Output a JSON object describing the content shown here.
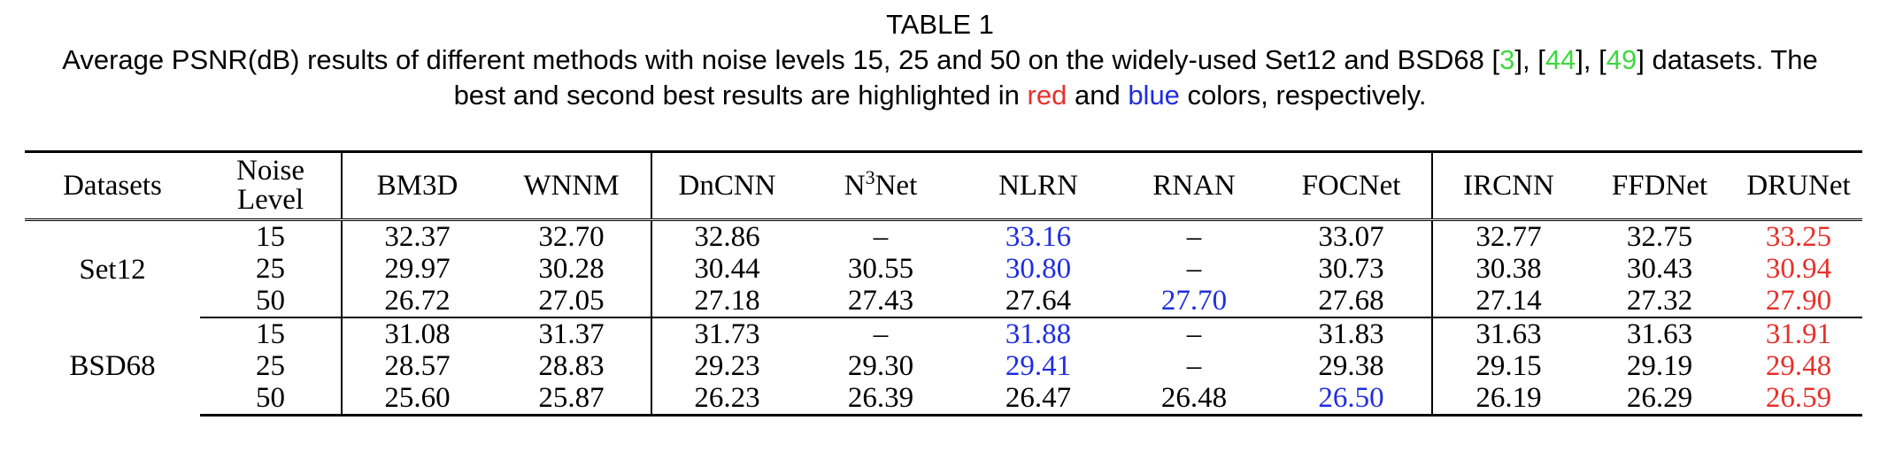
{
  "caption": {
    "label": "TABLE 1",
    "line1_pre": "Average PSNR(dB) results of different methods with noise levels 15, 25 and 50 on the widely-used Set12 and BSD68 [",
    "ref1": "3",
    "sep1": "], [",
    "ref2": "44",
    "sep2": "], [",
    "ref3": "49",
    "line1_post": "] datasets. The",
    "line2_pre": "best and second best results are highlighted in ",
    "red_word": "red",
    "and_word": " and ",
    "blue_word": "blue",
    "line2_post": " colors, respectively."
  },
  "table": {
    "headers": {
      "datasets": "Datasets",
      "noise_line1": "Noise",
      "noise_line2": "Level",
      "bm3d": "BM3D",
      "wnnm": "WNNM",
      "dncnn": "DnCNN",
      "n3net_n": "N",
      "n3net_sup": "3",
      "n3net_rest": "Net",
      "nlrn": "NLRN",
      "rnan": "RNAN",
      "focnet": "FOCNet",
      "ircnn": "IRCNN",
      "ffdnet": "FFDNet",
      "drunet": "DRUNet"
    },
    "set12": {
      "name": "Set12",
      "rows": [
        [
          "15",
          "32.37",
          "32.70",
          "32.86",
          "–",
          "33.16",
          "–",
          "33.07",
          "32.77",
          "32.75",
          "33.25"
        ],
        [
          "25",
          "29.97",
          "30.28",
          "30.44",
          "30.55",
          "30.80",
          "–",
          "30.73",
          "30.38",
          "30.43",
          "30.94"
        ],
        [
          "50",
          "26.72",
          "27.05",
          "27.18",
          "27.43",
          "27.64",
          "27.70",
          "27.68",
          "27.14",
          "27.32",
          "27.90"
        ]
      ]
    },
    "bsd68": {
      "name": "BSD68",
      "rows": [
        [
          "15",
          "31.08",
          "31.37",
          "31.73",
          "–",
          "31.88",
          "–",
          "31.83",
          "31.63",
          "31.63",
          "31.91"
        ],
        [
          "25",
          "28.57",
          "28.83",
          "29.23",
          "29.30",
          "29.41",
          "–",
          "29.38",
          "29.15",
          "29.19",
          "29.48"
        ],
        [
          "50",
          "25.60",
          "25.87",
          "26.23",
          "26.39",
          "26.47",
          "26.48",
          "26.50",
          "26.19",
          "26.29",
          "26.59"
        ]
      ]
    }
  },
  "colors": {
    "best": "#e8302b",
    "second": "#1f2ee0",
    "citation": "#3fd83f"
  }
}
